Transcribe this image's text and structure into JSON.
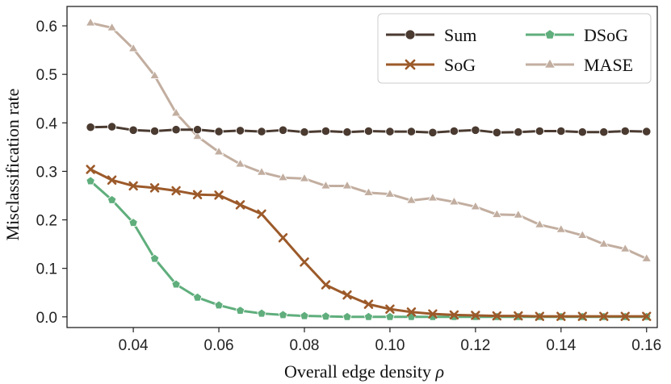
{
  "chart_data": {
    "type": "line",
    "xlabel": "Overall edge density",
    "xlabel_symbol": "ρ",
    "ylabel": "Misclassification rate",
    "xlim": [
      0.0245,
      0.1625
    ],
    "ylim": [
      -0.022,
      0.64
    ],
    "xticks": [
      0.04,
      0.06,
      0.08,
      0.1,
      0.12,
      0.14,
      0.16
    ],
    "xtick_labels": [
      "0.04",
      "0.06",
      "0.08",
      "0.10",
      "0.12",
      "0.14",
      "0.16"
    ],
    "yticks": [
      0.0,
      0.1,
      0.2,
      0.3,
      0.4,
      0.5,
      0.6
    ],
    "ytick_labels": [
      "0.0",
      "0.1",
      "0.2",
      "0.3",
      "0.4",
      "0.5",
      "0.6"
    ],
    "legend_position": "top-right",
    "x": [
      0.03,
      0.035,
      0.04,
      0.045,
      0.05,
      0.055,
      0.06,
      0.065,
      0.07,
      0.075,
      0.08,
      0.085,
      0.09,
      0.095,
      0.1,
      0.105,
      0.11,
      0.115,
      0.12,
      0.125,
      0.13,
      0.135,
      0.14,
      0.145,
      0.15,
      0.155,
      0.16
    ],
    "series": [
      {
        "name": "Sum",
        "color": "#4a3a30",
        "marker": "circle",
        "values": [
          0.391,
          0.392,
          0.385,
          0.383,
          0.386,
          0.386,
          0.382,
          0.384,
          0.382,
          0.385,
          0.381,
          0.383,
          0.381,
          0.383,
          0.382,
          0.382,
          0.38,
          0.383,
          0.385,
          0.38,
          0.381,
          0.383,
          0.383,
          0.381,
          0.381,
          0.383,
          0.382
        ]
      },
      {
        "name": "SoG",
        "color": "#9c5a2a",
        "marker": "x",
        "values": [
          0.304,
          0.282,
          0.27,
          0.266,
          0.26,
          0.252,
          0.251,
          0.231,
          0.212,
          0.163,
          0.113,
          0.066,
          0.045,
          0.026,
          0.016,
          0.01,
          0.006,
          0.004,
          0.003,
          0.002,
          0.002,
          0.001,
          0.001,
          0.001,
          0.001,
          0.001,
          0.001
        ]
      },
      {
        "name": "DSoG",
        "color": "#5fae7c",
        "marker": "pentagon",
        "values": [
          0.28,
          0.241,
          0.194,
          0.12,
          0.067,
          0.04,
          0.024,
          0.013,
          0.007,
          0.004,
          0.002,
          0.001,
          0.0,
          0.0,
          0.0,
          0.0,
          0.0,
          0.0,
          0.0,
          0.0,
          0.0,
          0.0,
          0.0,
          0.0,
          0.0,
          0.0,
          0.0
        ]
      },
      {
        "name": "MASE",
        "color": "#c2aea0",
        "marker": "triangle",
        "values": [
          0.606,
          0.596,
          0.553,
          0.497,
          0.42,
          0.372,
          0.34,
          0.315,
          0.298,
          0.287,
          0.285,
          0.27,
          0.27,
          0.256,
          0.253,
          0.24,
          0.245,
          0.237,
          0.227,
          0.211,
          0.21,
          0.19,
          0.18,
          0.168,
          0.15,
          0.14,
          0.12
        ]
      }
    ]
  }
}
